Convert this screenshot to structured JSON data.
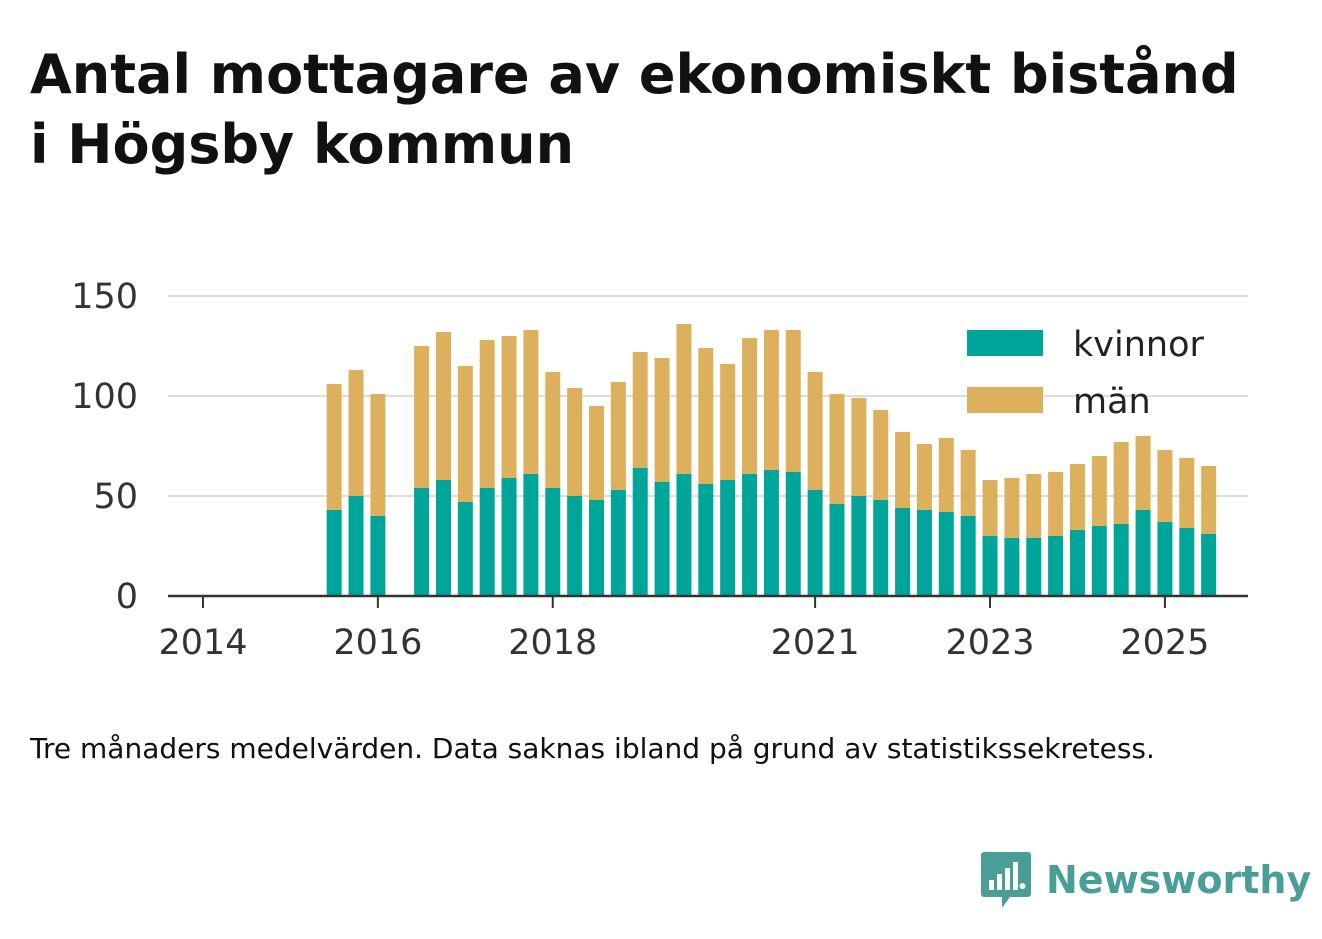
{
  "title": {
    "line1": "Antal mottagare av ekonomiskt bistånd",
    "line2": "i Högsby kommun"
  },
  "caption": "Tre månaders medelvärden. Data saknas ibland på grund av statistikssekretess.",
  "logo": {
    "text": "Newsworthy",
    "icon": "bar-chart-speech-bubble-icon",
    "color": "#4a9e98"
  },
  "colors": {
    "kvinnor": "#00a59a",
    "man": "#ddb05e",
    "grid": "#dddddd",
    "axis": "#333333"
  },
  "chart_data": {
    "type": "bar",
    "stacked": true,
    "x_unit": "year (quarterly values)",
    "xlim": [
      2013.6,
      2025.95
    ],
    "ylim": [
      0,
      150
    ],
    "yticks": [
      0,
      50,
      100,
      150
    ],
    "xticks": [
      2014,
      2016,
      2018,
      2021,
      2023,
      2025
    ],
    "grid": "horizontal",
    "legend_position": "top-right",
    "x": [
      2015.5,
      2015.75,
      2016.0,
      2016.5,
      2016.75,
      2017.0,
      2017.25,
      2017.5,
      2017.75,
      2018.0,
      2018.25,
      2018.5,
      2018.75,
      2019.0,
      2019.25,
      2019.5,
      2019.75,
      2020.0,
      2020.25,
      2020.5,
      2020.75,
      2021.0,
      2021.25,
      2021.5,
      2021.75,
      2022.0,
      2022.25,
      2022.5,
      2022.75,
      2023.0,
      2023.25,
      2023.5,
      2023.75,
      2024.0,
      2024.25,
      2024.5,
      2024.75,
      2025.0,
      2025.25,
      2025.5
    ],
    "series": [
      {
        "name": "kvinnor",
        "values": [
          43,
          50,
          40,
          54,
          58,
          47,
          54,
          59,
          61,
          54,
          50,
          48,
          53,
          64,
          57,
          61,
          56,
          58,
          61,
          63,
          62,
          53,
          46,
          50,
          48,
          44,
          43,
          42,
          40,
          30,
          29,
          29,
          30,
          33,
          35,
          36,
          43,
          37,
          34,
          31
        ]
      },
      {
        "name": "män",
        "values": [
          63,
          63,
          61,
          71,
          74,
          68,
          74,
          71,
          72,
          58,
          54,
          47,
          54,
          58,
          62,
          75,
          68,
          58,
          68,
          70,
          71,
          59,
          55,
          49,
          45,
          38,
          33,
          37,
          33,
          28,
          30,
          32,
          32,
          33,
          35,
          41,
          37,
          36,
          35,
          34
        ]
      }
    ]
  }
}
